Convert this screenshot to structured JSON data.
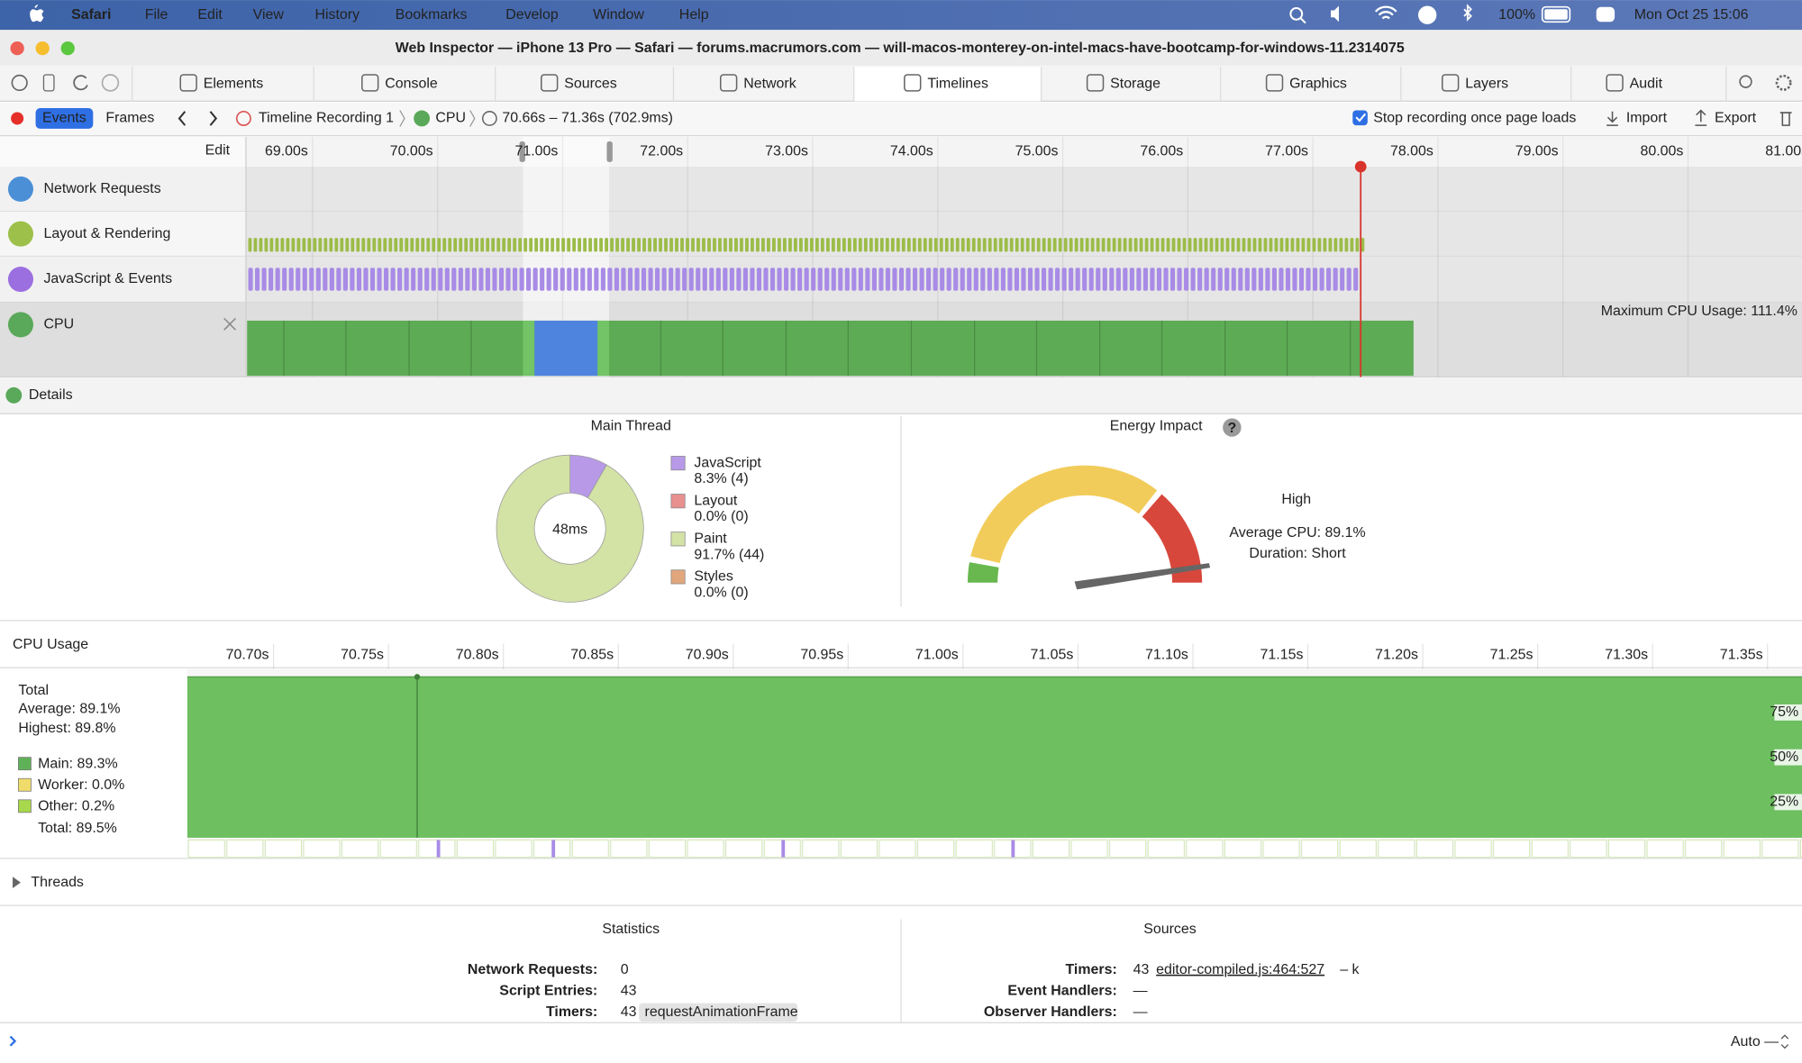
{
  "menu_bar": {
    "app": "Safari",
    "items": [
      "File",
      "Edit",
      "View",
      "History",
      "Bookmarks",
      "Develop",
      "Window",
      "Help"
    ],
    "battery": "100%",
    "clock": "Mon Oct 25  15:06"
  },
  "window_title": "Web Inspector — iPhone 13 Pro — Safari — forums.macrumors.com — will-macos-monterey-on-intel-macs-have-bootcamp-for-windows-11.2314075",
  "tabs": [
    "Elements",
    "Console",
    "Sources",
    "Network",
    "Timelines",
    "Storage",
    "Graphics",
    "Layers",
    "Audit"
  ],
  "selected_tab": 4,
  "toolbar": {
    "modes": [
      "Events",
      "Frames"
    ],
    "breadcrumbs": [
      "Timeline Recording 1",
      "CPU",
      "70.66s – 71.36s (702.9ms)"
    ],
    "stop_recording": "Stop recording once page loads",
    "import": "Import",
    "export": "Export"
  },
  "timeline": {
    "edit": "Edit",
    "ruler": [
      "69.00s",
      "70.00s",
      "71.00s",
      "72.00s",
      "73.00s",
      "74.00s",
      "75.00s",
      "76.00s",
      "77.00s",
      "78.00s",
      "79.00s",
      "80.00s",
      "81.00s"
    ],
    "tracks": [
      "Network Requests",
      "Layout & Rendering",
      "JavaScript & Events",
      "CPU"
    ],
    "max_cpu": "Maximum CPU Usage: 111.4%"
  },
  "details": "Details",
  "main_thread": {
    "title": "Main Thread",
    "total": "48ms",
    "categories": [
      "JavaScript",
      "Layout",
      "Paint",
      "Styles"
    ],
    "values": [
      8.3,
      0,
      91.7,
      0
    ],
    "value_labels": [
      "8.3% (4)",
      "0.0% (0)",
      "91.7% (44)",
      "0.0% (0)"
    ],
    "colors": [
      "#b799e8",
      "#e88f8f",
      "#d3e2a5",
      "#e2a67c"
    ]
  },
  "energy": {
    "title": "Energy Impact",
    "help": "?",
    "level": "High",
    "average": "Average CPU: 89.1%",
    "duration": "Duration: Short"
  },
  "cpu_usage": {
    "title": "CPU Usage",
    "ruler": [
      "70.70s",
      "70.75s",
      "70.80s",
      "70.85s",
      "70.90s",
      "70.95s",
      "71.00s",
      "71.05s",
      "71.10s",
      "71.15s",
      "71.20s",
      "71.25s",
      "71.30s",
      "71.35s"
    ],
    "total": "Total",
    "average": "Average: 89.1%",
    "highest": "Highest: 89.8%",
    "legend": [
      {
        "label": "Main: 89.3%",
        "color": "#5fb157"
      },
      {
        "label": "Worker: 0.0%",
        "color": "#f0dc6a"
      },
      {
        "label": "Other: 0.2%",
        "color": "#a8d84c"
      }
    ],
    "sum": "Total: 89.5%",
    "axis": [
      "75%",
      "50%",
      "25%"
    ]
  },
  "threads": "Threads",
  "statistics": {
    "title": "Statistics",
    "rows": [
      [
        "Network Requests:",
        "0"
      ],
      [
        "Script Entries:",
        "43"
      ],
      [
        "Timers:",
        "43"
      ]
    ],
    "tag": "requestAnimationFrame"
  },
  "sources": {
    "title": "Sources",
    "rows": [
      [
        "Timers:",
        "43"
      ],
      [
        "Event Handlers:",
        "—"
      ],
      [
        "Observer Handlers:",
        "—"
      ]
    ],
    "link": "editor-compiled.js:464:527",
    "link_suffix": "– k"
  },
  "console": {
    "mode": "Auto —"
  }
}
